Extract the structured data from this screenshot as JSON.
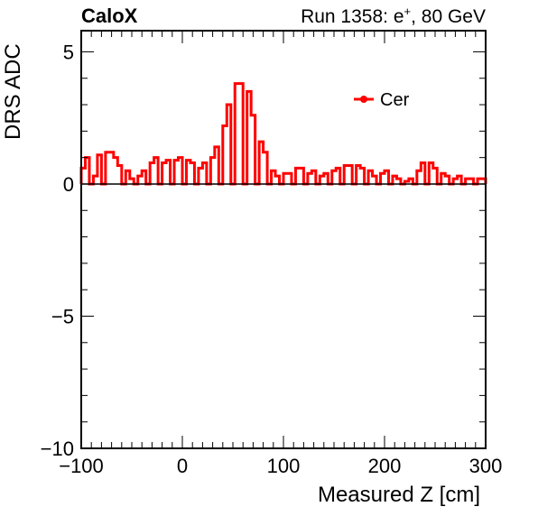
{
  "header": {
    "left": "CaloX",
    "right_prefix": "Run 1358: e",
    "right_sup": "+",
    "right_suffix": ", 80 GeV"
  },
  "chart_data": {
    "type": "histogram",
    "title": "",
    "xlabel": "Measured Z [cm]",
    "ylabel": "DRS ADC",
    "xlim": [
      -100,
      300
    ],
    "ylim": [
      -10,
      5.8
    ],
    "x_ticks": [
      "−100",
      "0",
      "100",
      "200",
      "300"
    ],
    "y_ticks": [
      "−10",
      "−5",
      "0",
      "5"
    ],
    "legend_position": "top-right",
    "grid": false,
    "series": [
      {
        "name": "Cer",
        "color": "#ff0000",
        "bin_width": 4,
        "x_start": -100,
        "values": [
          0.6,
          1.0,
          0.0,
          0.3,
          1.1,
          0.0,
          1.2,
          1.2,
          1.0,
          0.7,
          0.0,
          0.5,
          0.2,
          0.0,
          0.3,
          0.5,
          0.0,
          0.8,
          1.0,
          0.0,
          0.8,
          0.9,
          0.0,
          0.9,
          1.0,
          0.0,
          0.9,
          0.8,
          0.0,
          0.6,
          0.8,
          0.0,
          1.0,
          1.4,
          0.0,
          2.2,
          3.0,
          0.0,
          3.8,
          3.8,
          0.0,
          3.5,
          2.6,
          0.0,
          1.6,
          1.2,
          0.0,
          0.5,
          0.3,
          0.0,
          0.4,
          0.4,
          0.0,
          0.6,
          0.6,
          0.0,
          0.4,
          0.5,
          0.0,
          0.3,
          0.4,
          0.0,
          0.5,
          0.6,
          0.0,
          0.7,
          0.7,
          0.0,
          0.7,
          0.6,
          0.0,
          0.5,
          0.3,
          0.0,
          0.4,
          0.5,
          0.0,
          0.3,
          0.2,
          0.0,
          0.1,
          0.2,
          0.0,
          0.5,
          0.8,
          0.0,
          0.8,
          0.6,
          0.0,
          0.4,
          0.3,
          0.0,
          0.2,
          0.3,
          0.0,
          0.2,
          0.2,
          0.0,
          0.2,
          0.2
        ]
      }
    ]
  }
}
